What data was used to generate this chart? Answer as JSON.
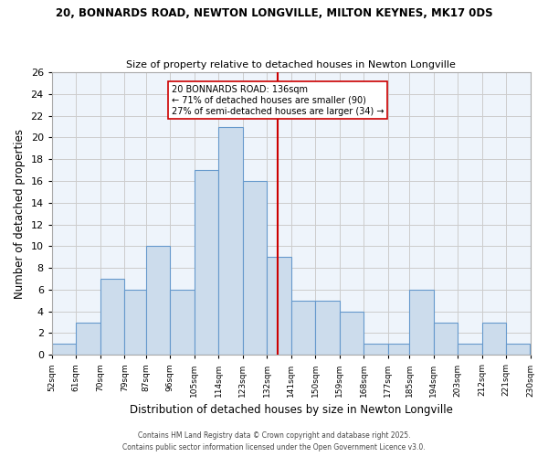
{
  "title1": "20, BONNARDS ROAD, NEWTON LONGVILLE, MILTON KEYNES, MK17 0DS",
  "title2": "Size of property relative to detached houses in Newton Longville",
  "xlabel": "Distribution of detached houses by size in Newton Longville",
  "ylabel": "Number of detached properties",
  "bar_color": "#ccdcec",
  "bar_edge_color": "#6699cc",
  "bins": [
    52,
    61,
    70,
    79,
    87,
    96,
    105,
    114,
    123,
    132,
    141,
    150,
    159,
    168,
    177,
    185,
    194,
    203,
    212,
    221,
    230
  ],
  "counts": [
    1,
    3,
    7,
    6,
    10,
    6,
    17,
    21,
    16,
    9,
    5,
    5,
    4,
    1,
    1,
    6,
    3,
    1,
    3,
    1
  ],
  "bin_labels": [
    "52sqm",
    "61sqm",
    "70sqm",
    "79sqm",
    "87sqm",
    "96sqm",
    "105sqm",
    "114sqm",
    "123sqm",
    "132sqm",
    "141sqm",
    "150sqm",
    "159sqm",
    "168sqm",
    "177sqm",
    "185sqm",
    "194sqm",
    "203sqm",
    "212sqm",
    "221sqm",
    "230sqm"
  ],
  "property_size": 136,
  "vline_color": "#cc0000",
  "annotation_title": "20 BONNARDS ROAD: 136sqm",
  "annotation_line1": "← 71% of detached houses are smaller (90)",
  "annotation_line2": "27% of semi-detached houses are larger (34) →",
  "ylim": [
    0,
    26
  ],
  "yticks": [
    0,
    2,
    4,
    6,
    8,
    10,
    12,
    14,
    16,
    18,
    20,
    22,
    24,
    26
  ],
  "footer1": "Contains HM Land Registry data © Crown copyright and database right 2025.",
  "footer2": "Contains public sector information licensed under the Open Government Licence v3.0.",
  "background_color": "#ffffff",
  "grid_color": "#cccccc",
  "plot_bg_color": "#eef4fb"
}
